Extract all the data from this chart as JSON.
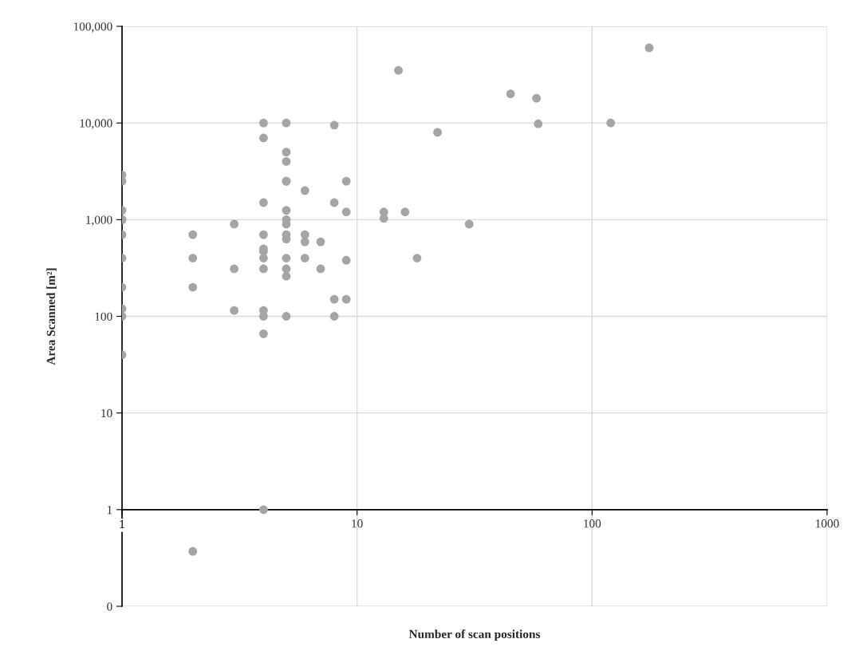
{
  "chart_data": {
    "type": "scatter",
    "xlabel": "Number of scan positions",
    "ylabel": "Area Scanned [m²]",
    "log": "xy",
    "grid": true,
    "marker": "circle",
    "xlim": [
      1,
      1000
    ],
    "xticks": [
      1,
      10,
      100,
      1000
    ],
    "ylim": [
      0.1,
      100000
    ],
    "yticks": [
      {
        "value": 0.1,
        "label": "0"
      },
      {
        "value": 1,
        "label": "1"
      },
      {
        "value": 10,
        "label": "10"
      },
      {
        "value": 100,
        "label": "100"
      },
      {
        "value": 1000,
        "label": "1,000"
      },
      {
        "value": 10000,
        "label": "10,000"
      },
      {
        "value": 100000,
        "label": "100,000"
      }
    ],
    "series": [
      {
        "color": "#a5a5a5",
        "x": [
          1,
          1,
          1,
          1,
          1,
          1,
          1,
          1,
          1,
          1,
          1,
          2,
          2,
          2,
          2,
          3,
          3,
          3,
          4,
          4,
          4,
          4,
          4,
          4,
          4,
          4,
          4,
          4,
          4,
          4,
          5,
          5,
          5,
          5,
          5,
          5,
          5,
          5,
          5,
          5,
          5,
          5,
          5,
          5,
          6,
          6,
          6,
          6,
          7,
          7,
          8,
          8,
          8,
          8,
          9,
          9,
          9,
          9,
          13,
          13,
          15,
          16,
          18,
          22,
          30,
          45,
          58,
          59,
          120,
          175
        ],
        "values": [
          2900,
          2500,
          1250,
          1000,
          700,
          400,
          200,
          120,
          100,
          40,
          1000,
          700,
          400,
          200,
          0.37,
          900,
          310,
          115,
          10000,
          7000,
          1500,
          700,
          500,
          470,
          400,
          310,
          115,
          100,
          66,
          1,
          10000,
          5000,
          4000,
          2500,
          1250,
          1000,
          900,
          700,
          630,
          400,
          310,
          260,
          100,
          2500,
          2000,
          700,
          590,
          400,
          590,
          310,
          9500,
          1500,
          150,
          100,
          2500,
          1200,
          380,
          150,
          1200,
          1030,
          35000,
          1200,
          400,
          8000,
          900,
          20000,
          18000,
          9800,
          10000,
          60000
        ]
      }
    ]
  }
}
